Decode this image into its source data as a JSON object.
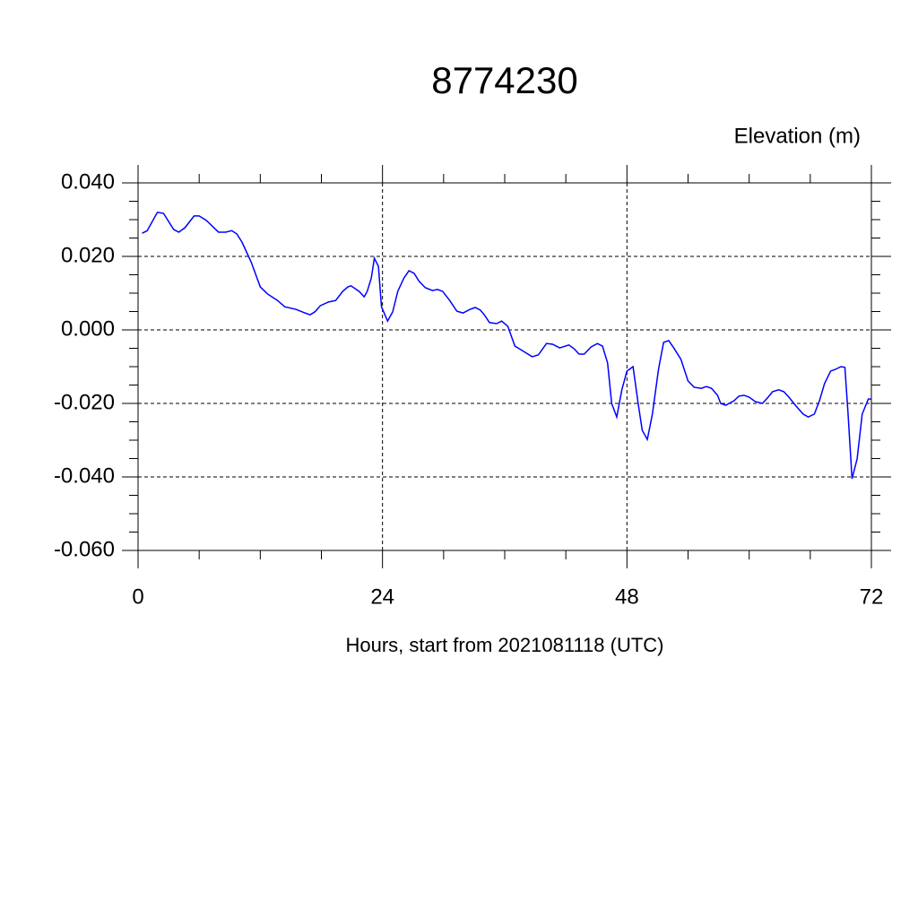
{
  "chart_data": {
    "type": "line",
    "title": "8774230",
    "subtitle": "Elevation (m)",
    "x_label": "Hours, start from 2021081118 (UTC)",
    "xlim": [
      0,
      72
    ],
    "xticks": [
      0,
      24,
      48,
      72
    ],
    "ylim": [
      -0.06,
      0.04
    ],
    "yticks": [
      {
        "value": -0.06,
        "label": "-0.060"
      },
      {
        "value": -0.04,
        "label": "-0.040"
      },
      {
        "value": -0.02,
        "label": "-0.020"
      },
      {
        "value": 0,
        "label": "0.000"
      },
      {
        "value": 0.02,
        "label": "0.020"
      },
      {
        "value": 0.04,
        "label": "0.040"
      }
    ],
    "grid": true,
    "series": [
      {
        "color": "#0000ff",
        "x": [
          0.4,
          0.9,
          1.9,
          2.5,
          3.5,
          4.0,
          4.6,
          5.5,
          6.0,
          6.7,
          7.9,
          8.6,
          9.2,
          9.7,
          10.2,
          11.1,
          12.0,
          12.7,
          13.7,
          14.4,
          15.5,
          16.4,
          16.9,
          17.4,
          17.9,
          18.7,
          19.4,
          20.1,
          20.6,
          20.9,
          21.7,
          22.2,
          22.5,
          22.9,
          23.2,
          23.6,
          23.9,
          24.5,
          25.0,
          25.5,
          26.1,
          26.6,
          27.1,
          27.6,
          28.2,
          28.9,
          29.4,
          29.9,
          30.6,
          31.3,
          31.9,
          32.6,
          33.1,
          33.6,
          34.0,
          34.5,
          35.2,
          35.7,
          36.3,
          37.0,
          38.0,
          38.7,
          39.3,
          40.1,
          40.7,
          41.4,
          42.3,
          42.8,
          43.3,
          43.8,
          44.5,
          45.1,
          45.6,
          46.1,
          46.5,
          47.0,
          47.5,
          48.0,
          48.6,
          49.1,
          49.5,
          50.0,
          50.5,
          51.1,
          51.6,
          52.1,
          52.6,
          53.3,
          54.0,
          54.6,
          55.3,
          55.8,
          56.3,
          56.9,
          57.2,
          57.7,
          58.5,
          59.0,
          59.5,
          60.0,
          60.6,
          61.3,
          61.8,
          62.3,
          62.9,
          63.4,
          63.9,
          64.6,
          65.3,
          65.8,
          66.4,
          66.9,
          67.4,
          68.0,
          68.5,
          69.0,
          69.4,
          69.7,
          70.1,
          70.6,
          71.1,
          71.7,
          72.0
        ],
        "values": [
          0.0263,
          0.027,
          0.032,
          0.0317,
          0.0273,
          0.0266,
          0.0278,
          0.031,
          0.031,
          0.0298,
          0.0266,
          0.0266,
          0.027,
          0.0261,
          0.0239,
          0.0185,
          0.0117,
          0.0098,
          0.008,
          0.0063,
          0.0056,
          0.0046,
          0.0041,
          0.005,
          0.0066,
          0.0076,
          0.008,
          0.0105,
          0.0117,
          0.012,
          0.0105,
          0.009,
          0.0105,
          0.0141,
          0.0195,
          0.0173,
          0.0063,
          0.0024,
          0.0049,
          0.0105,
          0.0141,
          0.0161,
          0.0154,
          0.0132,
          0.0115,
          0.0107,
          0.011,
          0.0105,
          0.008,
          0.0051,
          0.0046,
          0.0056,
          0.0061,
          0.0054,
          0.0041,
          0.002,
          0.0017,
          0.0024,
          0.001,
          -0.0044,
          -0.0061,
          -0.0073,
          -0.0068,
          -0.0037,
          -0.0039,
          -0.0049,
          -0.0041,
          -0.0051,
          -0.0066,
          -0.0066,
          -0.0046,
          -0.0037,
          -0.0044,
          -0.009,
          -0.02,
          -0.0237,
          -0.0163,
          -0.0112,
          -0.01,
          -0.02,
          -0.0273,
          -0.0298,
          -0.0229,
          -0.0107,
          -0.0034,
          -0.0029,
          -0.0049,
          -0.008,
          -0.0139,
          -0.0156,
          -0.0159,
          -0.0154,
          -0.0159,
          -0.0178,
          -0.02,
          -0.0205,
          -0.0193,
          -0.018,
          -0.0178,
          -0.0183,
          -0.0195,
          -0.02,
          -0.0185,
          -0.0168,
          -0.0163,
          -0.0168,
          -0.0183,
          -0.0207,
          -0.0229,
          -0.0237,
          -0.0229,
          -0.0193,
          -0.0146,
          -0.0112,
          -0.0107,
          -0.01,
          -0.0102,
          -0.0224,
          -0.0405,
          -0.0351,
          -0.0229,
          -0.0188,
          -0.0188
        ]
      }
    ]
  }
}
